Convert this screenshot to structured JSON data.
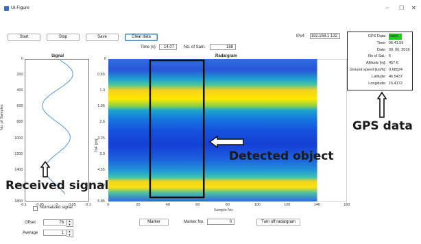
{
  "window": {
    "title": "UI Figure",
    "controls": {
      "minimize": "–",
      "maximize": "☐",
      "close": "✕"
    }
  },
  "toolbar": {
    "start": "Start",
    "stop": "Stop",
    "save": "Save",
    "clear": "Clear data"
  },
  "time_label": "Time (s)",
  "time_value": "14.07",
  "nsam_label": "No. of Sam.",
  "nsam_value": "168",
  "ipv4_label": "IPv4",
  "ipv4_value": "192.168.1.132",
  "gps": {
    "rows": [
      {
        "key": "GPS Data:",
        "value": "Valid"
      },
      {
        "key": "Time:",
        "value": "06:41:59"
      },
      {
        "key": "Date:",
        "value": "30. 06. 2019"
      },
      {
        "key": "No of Sat.:",
        "value": "6"
      },
      {
        "key": "Altitude [m]:",
        "value": "457.6"
      },
      {
        "key": "Ground speed [km/h]:",
        "value": "0.68524"
      },
      {
        "key": "Latitude:",
        "value": "46.5437"
      },
      {
        "key": "Longitude:",
        "value": "15.4172"
      }
    ],
    "valid_color": "#22cc22"
  },
  "signal_plot": {
    "title": "Signal",
    "ylabel": "No. of Samples",
    "yticks": [
      "0",
      "200",
      "400",
      "600",
      "800",
      "1000",
      "1200",
      "1400",
      "1600",
      "1800"
    ],
    "xticks": [
      "-0.1",
      "-0.05",
      "0",
      "0.05",
      "0.1"
    ],
    "line_color": "#3d8fd6"
  },
  "radargram": {
    "title": "Radargram",
    "ylabel": "ToF [ns]",
    "xlabel": "Sample No.",
    "yticks": [
      "0",
      "0.65",
      "1.3",
      "1.95",
      "2.6",
      "3.25",
      "3.9",
      "4.55",
      "5.2",
      "5.85"
    ],
    "xticks": [
      "0",
      "20",
      "40",
      "60",
      "80",
      "100",
      "120",
      "140",
      "160"
    ],
    "xlim": [
      0,
      160
    ],
    "data_extent": [
      0,
      140
    ],
    "box_color": "#111111"
  },
  "normalized_label": "Normalized signal",
  "offset_label": "Offset",
  "offset_value": "76",
  "average_label": "Average",
  "average_value": "1",
  "marker_button": "Marker",
  "marker_no_label": "Marker No.",
  "marker_no_value": "0",
  "turn_off_button": "Turn off radargram",
  "annotations": {
    "gps_data": "GPS data",
    "detected_object": "Detected object",
    "received_signal": "Received signal"
  }
}
